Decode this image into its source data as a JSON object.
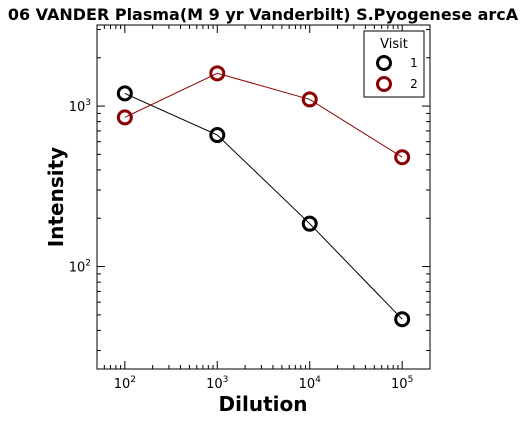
{
  "chart_data": {
    "type": "line",
    "title": "06 VANDER Plasma(M 9 yr Vanderbilt) S.Pyogenese arcA",
    "xlabel": "Dilution",
    "ylabel": "Intensity",
    "xscale": "log",
    "yscale": "log",
    "xlim": [
      50,
      200000
    ],
    "ylim": [
      23,
      3200
    ],
    "x": [
      100,
      1000,
      10000,
      100000
    ],
    "x_tick_labels": [
      {
        "base": "10",
        "exp": "2"
      },
      {
        "base": "10",
        "exp": "3"
      },
      {
        "base": "10",
        "exp": "4"
      },
      {
        "base": "10",
        "exp": "5"
      }
    ],
    "y_tick_labels": [
      {
        "base": "10",
        "exp": "2"
      },
      {
        "base": "10",
        "exp": "3"
      }
    ],
    "series": [
      {
        "name": "1",
        "color": "#000000",
        "values": [
          1200,
          660,
          185,
          47
        ]
      },
      {
        "name": "2",
        "color": "#8b0000",
        "values": [
          850,
          1600,
          1100,
          480
        ]
      }
    ],
    "legend": {
      "title": "Visit",
      "position": "top-right"
    },
    "grid": false
  }
}
